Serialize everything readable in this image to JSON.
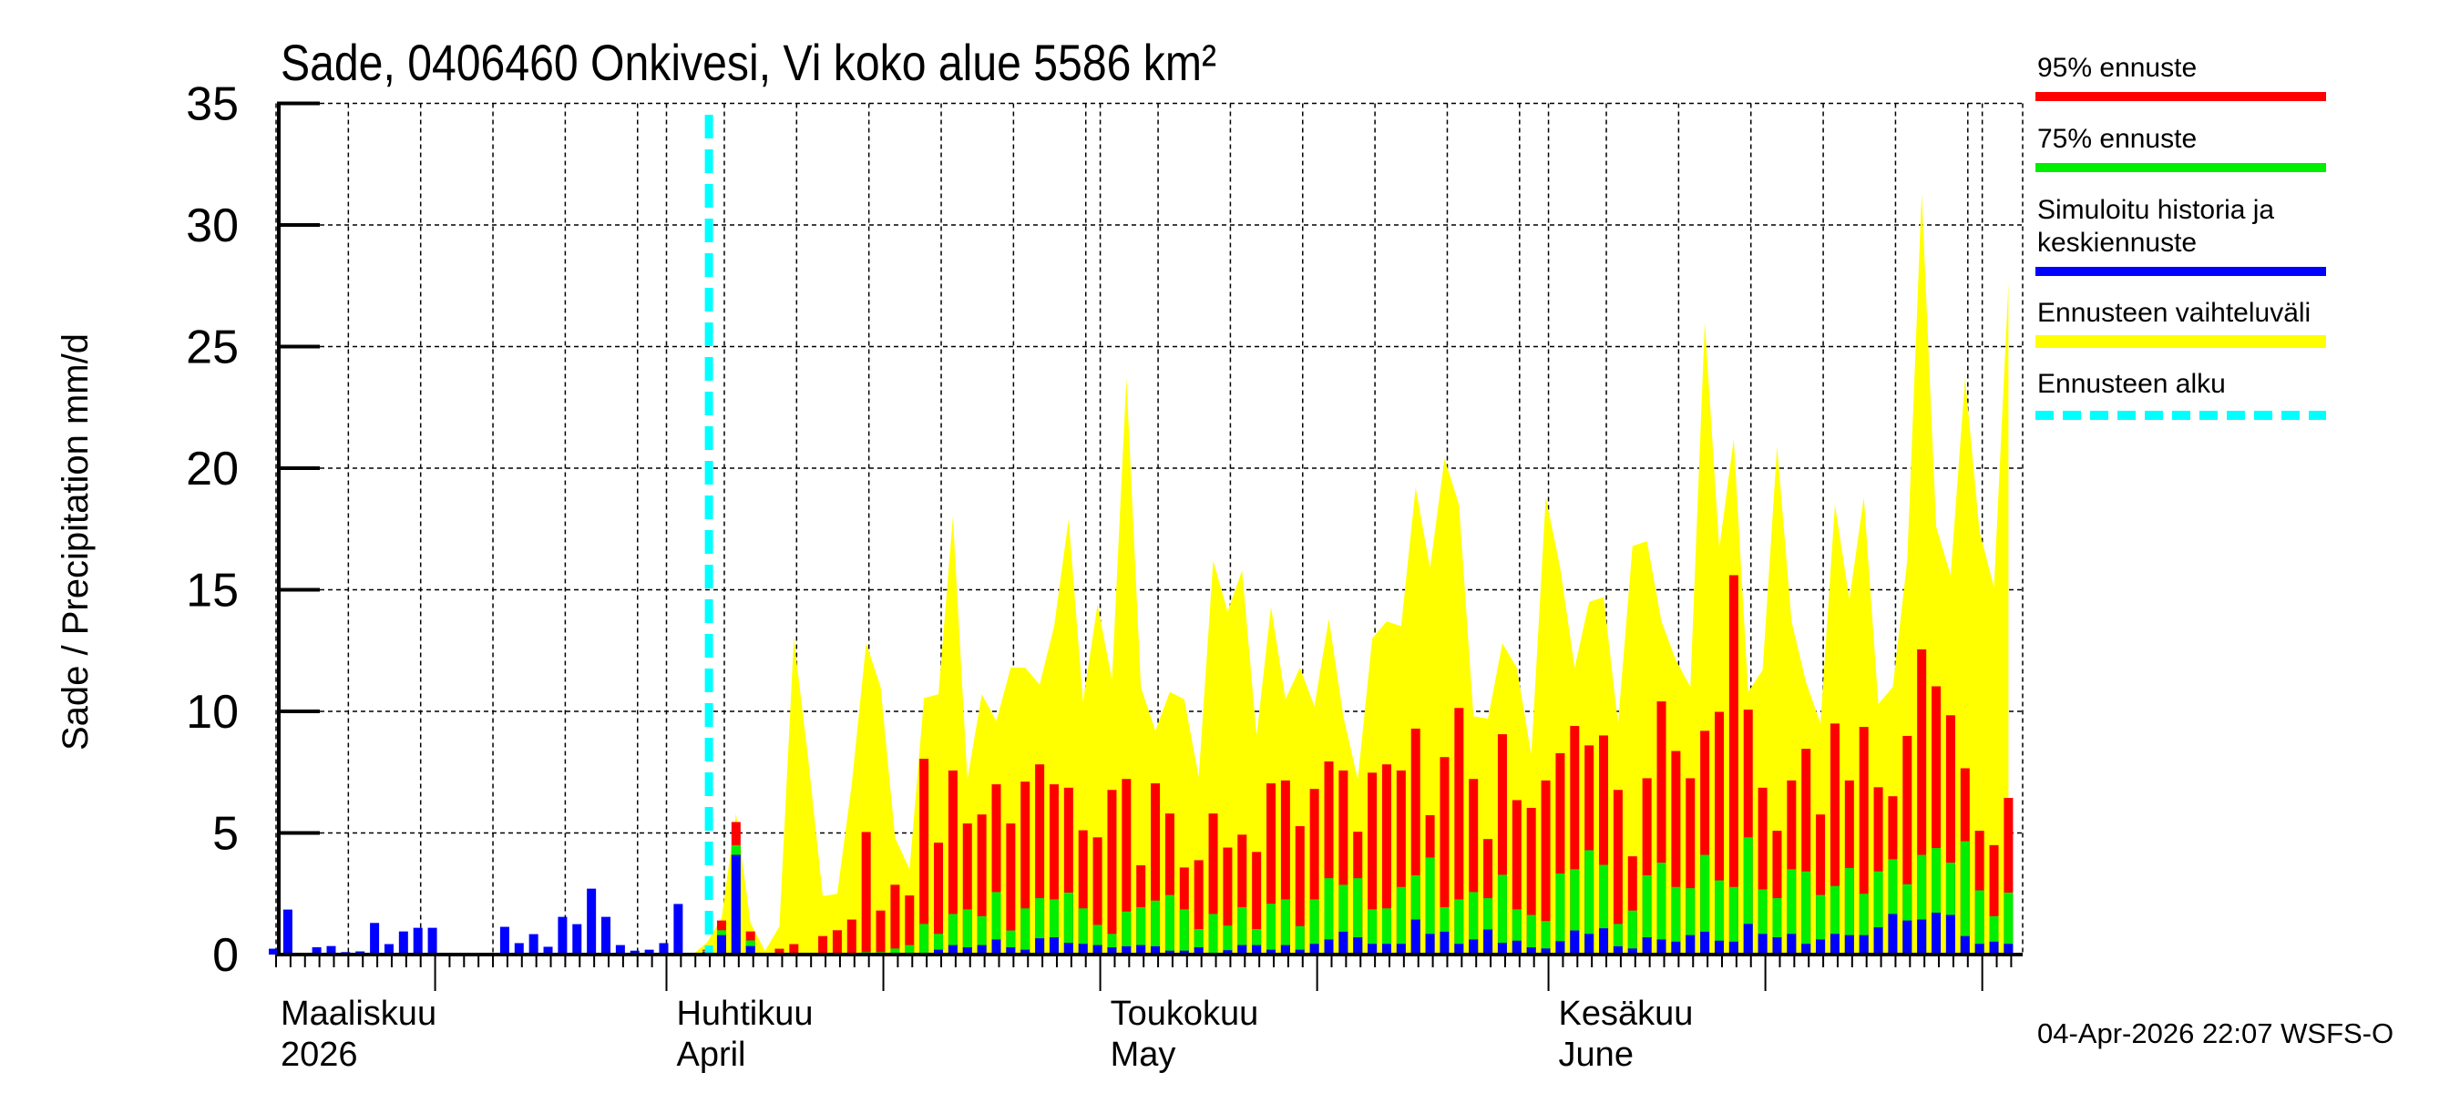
{
  "chart_data": {
    "type": "bar",
    "title": "Sade, 0406460 Onkivesi, Vi koko alue 5586 km²",
    "ylabel": "Sade / Precipitation   mm/d",
    "ylim": [
      0,
      35
    ],
    "yticks": [
      0,
      5,
      10,
      15,
      20,
      25,
      30,
      35
    ],
    "grid": true,
    "legend_position": "right",
    "x_month_labels": [
      {
        "line1": "Maaliskuu",
        "line2": "2026",
        "date": "2026-03-05"
      },
      {
        "line1": "Huhtikuu",
        "line2": "April",
        "date": "2026-04-01"
      },
      {
        "line1": "Toukokuu",
        "line2": "May",
        "date": "2026-05-01"
      },
      {
        "line1": "Kesäkuu",
        "line2": "June",
        "date": "2026-06-01"
      }
    ],
    "forecast_start": "2026-04-04",
    "dates_first": "2026-03-05",
    "dates_last": "2026-07-03",
    "history": [
      0.24,
      1.85,
      0.03,
      0.3,
      0.35,
      0.1,
      0.13,
      1.3,
      0.43,
      0.95,
      1.1,
      1.1,
      0.05,
      0,
      0,
      0.03,
      1.14,
      0.47,
      0.84,
      0.32,
      1.55,
      1.25,
      2.71,
      1.55,
      0.39,
      0.16,
      0.2,
      0.47,
      2.08,
      0.05
    ],
    "forecast_mean": [
      0.1,
      0.8,
      4.1,
      0.35,
      0,
      0,
      0,
      0,
      0,
      0,
      0,
      0,
      0,
      0,
      0,
      0.07,
      0.2,
      0.39,
      0.3,
      0.39,
      0.62,
      0.3,
      0.2,
      0.67,
      0.71,
      0.48,
      0.44,
      0.39,
      0.3,
      0.34,
      0.39,
      0.34,
      0.16,
      0.16,
      0.3,
      0.07,
      0.18,
      0.39,
      0.39,
      0.2,
      0.39,
      0.2,
      0.44,
      0.62,
      0.94,
      0.71,
      0.44,
      0.44,
      0.44,
      1.44,
      0.85,
      0.94,
      0.44,
      0.62,
      1.03,
      0.48,
      0.57,
      0.3,
      0.25,
      0.55,
      0.99,
      0.85,
      1.08,
      0.34,
      0.25,
      0.71,
      0.62,
      0.53,
      0.8,
      0.94,
      0.57,
      0.53,
      1.26,
      0.85,
      0.71,
      0.85,
      0.44,
      0.62,
      0.85,
      0.8,
      0.8,
      1.12,
      1.67,
      1.4,
      1.44,
      1.72,
      1.63,
      0.76,
      0.44,
      0.53,
      0.44
    ],
    "forecast_p75": [
      0.15,
      1.0,
      4.5,
      0.58,
      0,
      0.03,
      0.02,
      0,
      0.02,
      0.05,
      0.05,
      0.1,
      0.1,
      0.25,
      0.39,
      1.26,
      0.85,
      1.67,
      1.86,
      1.58,
      2.57,
      0.99,
      1.9,
      2.32,
      2.27,
      2.55,
      1.9,
      1.22,
      0.85,
      1.77,
      1.95,
      2.22,
      2.45,
      1.86,
      1.05,
      1.67,
      1.19,
      1.95,
      1.05,
      2.09,
      2.27,
      1.17,
      2.27,
      3.14,
      2.87,
      3.14,
      1.86,
      1.9,
      2.78,
      3.26,
      3.99,
      1.95,
      2.27,
      2.57,
      2.32,
      3.28,
      1.86,
      1.63,
      1.38,
      3.33,
      3.51,
      4.29,
      3.69,
      1.26,
      1.81,
      3.26,
      3.78,
      2.78,
      2.73,
      4.1,
      3.05,
      2.78,
      4.82,
      2.68,
      2.32,
      3.51,
      3.42,
      2.45,
      2.82,
      3.56,
      2.5,
      3.42,
      3.92,
      2.89,
      4.1,
      4.38,
      3.78,
      4.66,
      2.64,
      1.58,
      2.55
    ],
    "forecast_p95": [
      0.2,
      1.4,
      5.45,
      0.95,
      0.02,
      0.24,
      0.43,
      0.05,
      0.76,
      1.0,
      1.44,
      5.04,
      1.81,
      2.87,
      2.43,
      8.05,
      4.6,
      7.57,
      5.39,
      5.76,
      7.0,
      5.39,
      7.11,
      7.82,
      7.0,
      6.86,
      5.11,
      4.82,
      6.77,
      7.22,
      3.67,
      7.04,
      5.8,
      3.58,
      3.88,
      5.8,
      4.4,
      4.93,
      4.22,
      7.04,
      7.16,
      5.28,
      6.81,
      7.94,
      7.57,
      5.05,
      7.48,
      7.82,
      7.57,
      9.29,
      5.73,
      8.12,
      10.14,
      7.22,
      4.75,
      9.06,
      6.35,
      6.03,
      7.16,
      8.28,
      9.4,
      8.6,
      9.01,
      6.77,
      4.04,
      7.25,
      10.41,
      8.37,
      7.25,
      9.2,
      9.98,
      15.6,
      10.07,
      6.86,
      5.09,
      7.16,
      8.46,
      5.76,
      9.5,
      7.16,
      9.36,
      6.88,
      6.51,
      8.99,
      12.55,
      11.03,
      9.84,
      7.66,
      5.09,
      4.5,
      6.44
    ],
    "forecast_range_max": [
      0.5,
      1.5,
      5.8,
      1.3,
      0.15,
      1.15,
      13,
      8,
      2.4,
      2.5,
      7,
      12.8,
      11,
      4.8,
      3.5,
      10.55,
      10.7,
      18.0,
      7.2,
      10.7,
      9.6,
      11.8,
      11.8,
      11.1,
      13.5,
      17.9,
      10.4,
      14.4,
      11.3,
      23.7,
      11.0,
      9.2,
      10.8,
      10.5,
      7.3,
      16.2,
      14.1,
      15.8,
      9.0,
      14.3,
      10.5,
      11.8,
      10.2,
      13.8,
      9.8,
      7.2,
      13.0,
      13.7,
      13.5,
      19.2,
      15.9,
      20.4,
      18.5,
      9.8,
      9.7,
      12.8,
      11.8,
      8.2,
      18.8,
      15.9,
      11.8,
      14.5,
      14.7,
      9.5,
      16.8,
      17.0,
      13.7,
      12.1,
      11.0,
      26.0,
      16.7,
      21.2,
      10.8,
      11.7,
      20.9,
      13.7,
      11.2,
      9.5,
      18.5,
      14.6,
      18.8,
      10.3,
      11.0,
      16.2,
      31.3,
      17.6,
      15.6,
      23.7,
      17.4,
      15.1,
      27.6
    ],
    "legend": [
      {
        "label": "95% ennuste",
        "color": "#ff0000"
      },
      {
        "label": "75% ennuste",
        "color": "#00ee00"
      },
      {
        "label": "Simuloitu historia ja",
        "label2": "keskiennuste",
        "color": "#0000ff"
      },
      {
        "label": "Ennusteen vaihteluväli",
        "color": "#ffff00"
      },
      {
        "label": "Ennusteen alku",
        "color": "#00ffff"
      }
    ],
    "footer": "04-Apr-2026 22:07 WSFS-O"
  }
}
